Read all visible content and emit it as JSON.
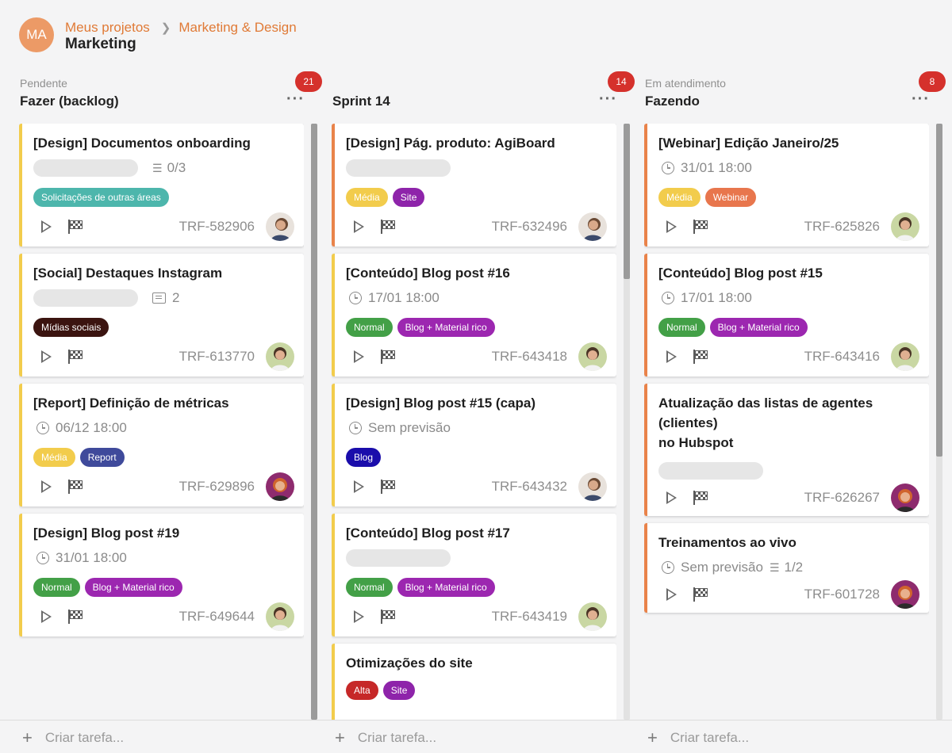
{
  "header": {
    "avatar_initials": "MA",
    "breadcrumb": [
      "Meus projetos",
      "Marketing & Design"
    ],
    "title": "Marketing"
  },
  "columns": [
    {
      "subtitle": "Pendente",
      "name": "Fazer (backlog)",
      "count": "21",
      "cards": [
        {
          "title": "[Design] Documentos onboarding",
          "checklist": "0/3",
          "tags": [
            "Solicitações de outras áreas"
          ],
          "code": "TRF-582906"
        },
        {
          "title": "[Social] Destaques Instagram",
          "comments": "2",
          "tags": [
            "Mídias sociais"
          ],
          "code": "TRF-613770"
        },
        {
          "title": "[Report] Definição de métricas",
          "date": "06/12 18:00",
          "tags": [
            "Média",
            "Report"
          ],
          "code": "TRF-629896"
        },
        {
          "title": "[Design] Blog post #19",
          "date": "31/01 18:00",
          "tags": [
            "Normal",
            "Blog + Material rico"
          ],
          "code": "TRF-649644"
        }
      ]
    },
    {
      "subtitle": "",
      "name": "Sprint 14",
      "count": "14",
      "cards": [
        {
          "title": "[Design] Pág. produto: AgiBoard",
          "tags": [
            "Média",
            "Site"
          ],
          "code": "TRF-632496"
        },
        {
          "title": "[Conteúdo] Blog post #16",
          "date": "17/01 18:00",
          "tags": [
            "Normal",
            "Blog + Material rico"
          ],
          "code": "TRF-643418"
        },
        {
          "title": "[Design] Blog post #15 (capa)",
          "date": "Sem previsão",
          "tags": [
            "Blog"
          ],
          "code": "TRF-643432"
        },
        {
          "title": "[Conteúdo] Blog post #17",
          "tags": [
            "Normal",
            "Blog + Material rico"
          ],
          "code": "TRF-643419"
        },
        {
          "title": "Otimizações do site",
          "tags": [
            "Alta",
            "Site"
          ],
          "code": ""
        }
      ]
    },
    {
      "subtitle": "Em atendimento",
      "name": "Fazendo",
      "count": "8",
      "cards": [
        {
          "title": "[Webinar] Edição Janeiro/25",
          "date": "31/01 18:00",
          "tags": [
            "Média",
            "Webinar"
          ],
          "code": "TRF-625826"
        },
        {
          "title": "[Conteúdo] Blog post #15",
          "date": "17/01 18:00",
          "tags": [
            "Normal",
            "Blog + Material rico"
          ],
          "code": "TRF-643416"
        },
        {
          "title_line1": "Atualização das listas de agentes (clientes)",
          "title_line2": "no Hubspot",
          "code": "TRF-626267"
        },
        {
          "title": "Treinamentos ao vivo",
          "date": "Sem previsão",
          "checklist": "1/2",
          "code": "TRF-601728"
        }
      ]
    }
  ],
  "create_task_label": "Criar tarefa...",
  "colors": {
    "accent": "#e07a36",
    "badge": "#d5312c",
    "yellow_border": "#f2cc4c",
    "orange_border": "#e9834a",
    "tag_media": "#f2cc4c",
    "tag_normal": "#43a047",
    "tag_alta": "#c62828",
    "tag_site": "#8e24aa",
    "tag_blog_material": "#9c27b0",
    "tag_blog": "#1a0dab",
    "tag_report": "#3f4a9b",
    "tag_webinar": "#e8764d",
    "tag_solicitacoes": "#4db6ac",
    "tag_midias": "#3b1410"
  }
}
